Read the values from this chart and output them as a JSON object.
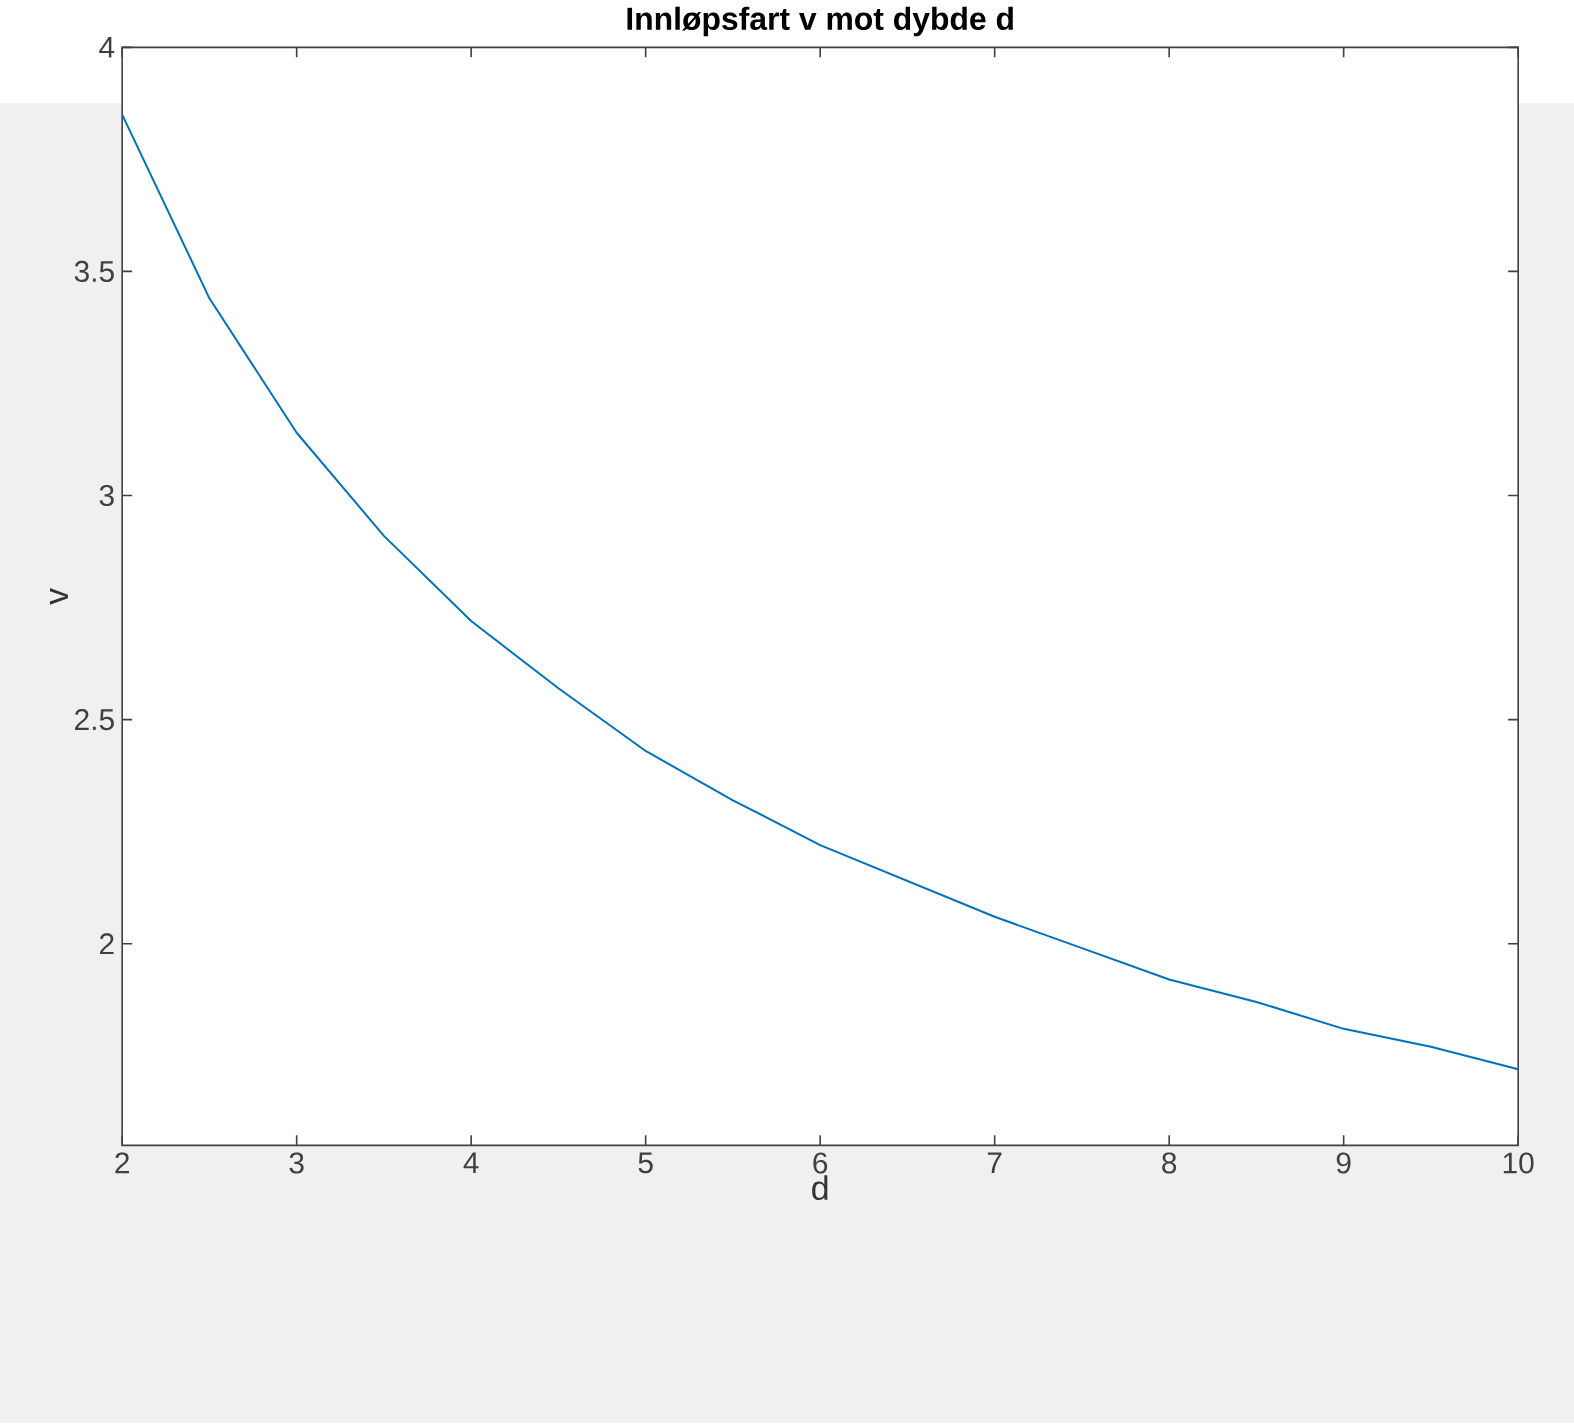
{
  "chart_data": {
    "type": "line",
    "title": "Innløpsfart v mot dybde d",
    "xlabel": "d",
    "ylabel": "v",
    "x": [
      2,
      2.5,
      3,
      3.5,
      4,
      4.5,
      5,
      5.5,
      6,
      6.5,
      7,
      7.5,
      8,
      8.5,
      9,
      9.5,
      10
    ],
    "series": [
      {
        "color": "#0072bd",
        "values": [
          3.85,
          3.44,
          3.14,
          2.91,
          2.72,
          2.57,
          2.43,
          2.32,
          2.22,
          2.14,
          2.06,
          1.99,
          1.92,
          1.87,
          1.81,
          1.77,
          1.72
        ]
      }
    ],
    "xlim": [
      2,
      10
    ],
    "ylim": [
      1.55,
      4
    ],
    "xticks": [
      2,
      3,
      4,
      5,
      6,
      7,
      8,
      9,
      10
    ],
    "yticks": [
      2,
      2.5,
      3,
      3.5,
      4
    ]
  }
}
